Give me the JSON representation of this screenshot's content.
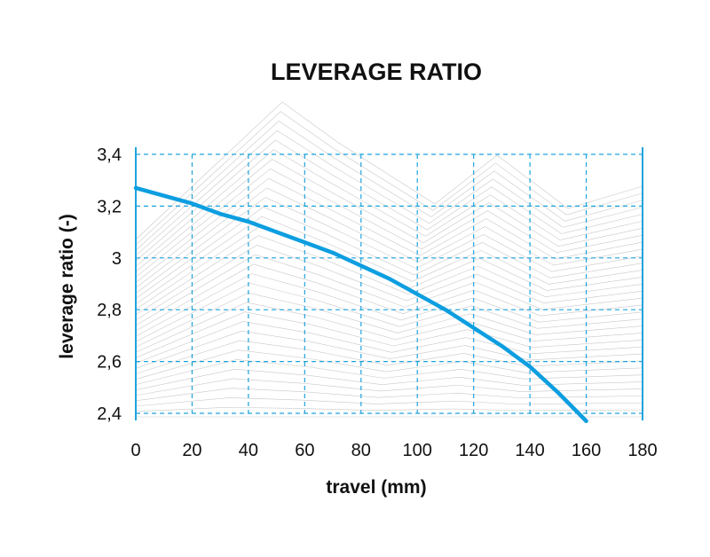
{
  "chart_data": {
    "type": "line",
    "title": "LEVERAGE RATIO",
    "xlabel": "travel (mm)",
    "ylabel": "leverage ratio (-)",
    "xlim": [
      0,
      180
    ],
    "ylim": [
      2.4,
      3.4
    ],
    "xticks": [
      0,
      20,
      40,
      60,
      80,
      100,
      120,
      140,
      160,
      180
    ],
    "yticks": [
      2.4,
      2.6,
      2.8,
      3.0,
      3.2,
      3.4
    ],
    "xtick_labels": [
      "0",
      "20",
      "40",
      "60",
      "80",
      "100",
      "120",
      "140",
      "160",
      "180"
    ],
    "ytick_labels": [
      "2,4",
      "2,6",
      "2,8",
      "3",
      "3,2",
      "3,4"
    ],
    "grid": true,
    "colors": {
      "series": "#0d9ee0",
      "grid": "#1fa3dc"
    },
    "series": [
      {
        "x": [
          0,
          10,
          20,
          30,
          40,
          50,
          60,
          70,
          80,
          90,
          100,
          110,
          120,
          130,
          140,
          150,
          160
        ],
        "y": [
          3.27,
          3.24,
          3.21,
          3.17,
          3.14,
          3.1,
          3.06,
          3.02,
          2.97,
          2.92,
          2.86,
          2.8,
          2.73,
          2.66,
          2.58,
          2.48,
          2.37
        ]
      }
    ]
  }
}
